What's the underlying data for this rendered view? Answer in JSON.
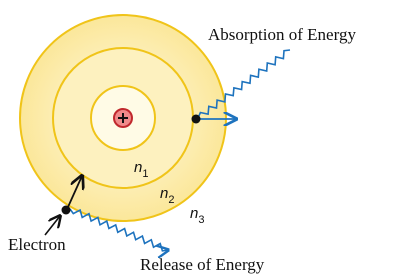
{
  "labels": {
    "absorption": "Absorption of Energy",
    "electron": "Electron",
    "release": "Release of Energy"
  },
  "orbits": [
    {
      "symbol": "n",
      "subscript": "1"
    },
    {
      "symbol": "n",
      "subscript": "2"
    },
    {
      "symbol": "n",
      "subscript": "3"
    }
  ]
}
